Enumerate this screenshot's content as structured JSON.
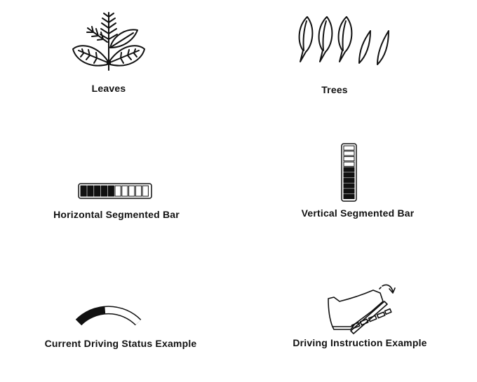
{
  "panel": {
    "items": [
      {
        "icon": "leaves-icon",
        "label": "Leaves"
      },
      {
        "icon": "trees-icon",
        "label": "Trees"
      },
      {
        "icon": "horizontal-segmented-bar-icon",
        "label": "Horizontal Segmented Bar",
        "filled_segments": 5,
        "total_segments": 10
      },
      {
        "icon": "vertical-segmented-bar-icon",
        "label": "Vertical Segmented Bar",
        "filled_segments": 6,
        "total_segments": 10
      },
      {
        "icon": "driving-status-arc-icon",
        "label": "Current Driving Status Example",
        "level": 0.45
      },
      {
        "icon": "pedal-press-icon",
        "label": "Driving Instruction Example"
      }
    ]
  },
  "colors": {
    "ink": "#111111",
    "background": "#ffffff",
    "empty_segment": "#ffffff"
  }
}
